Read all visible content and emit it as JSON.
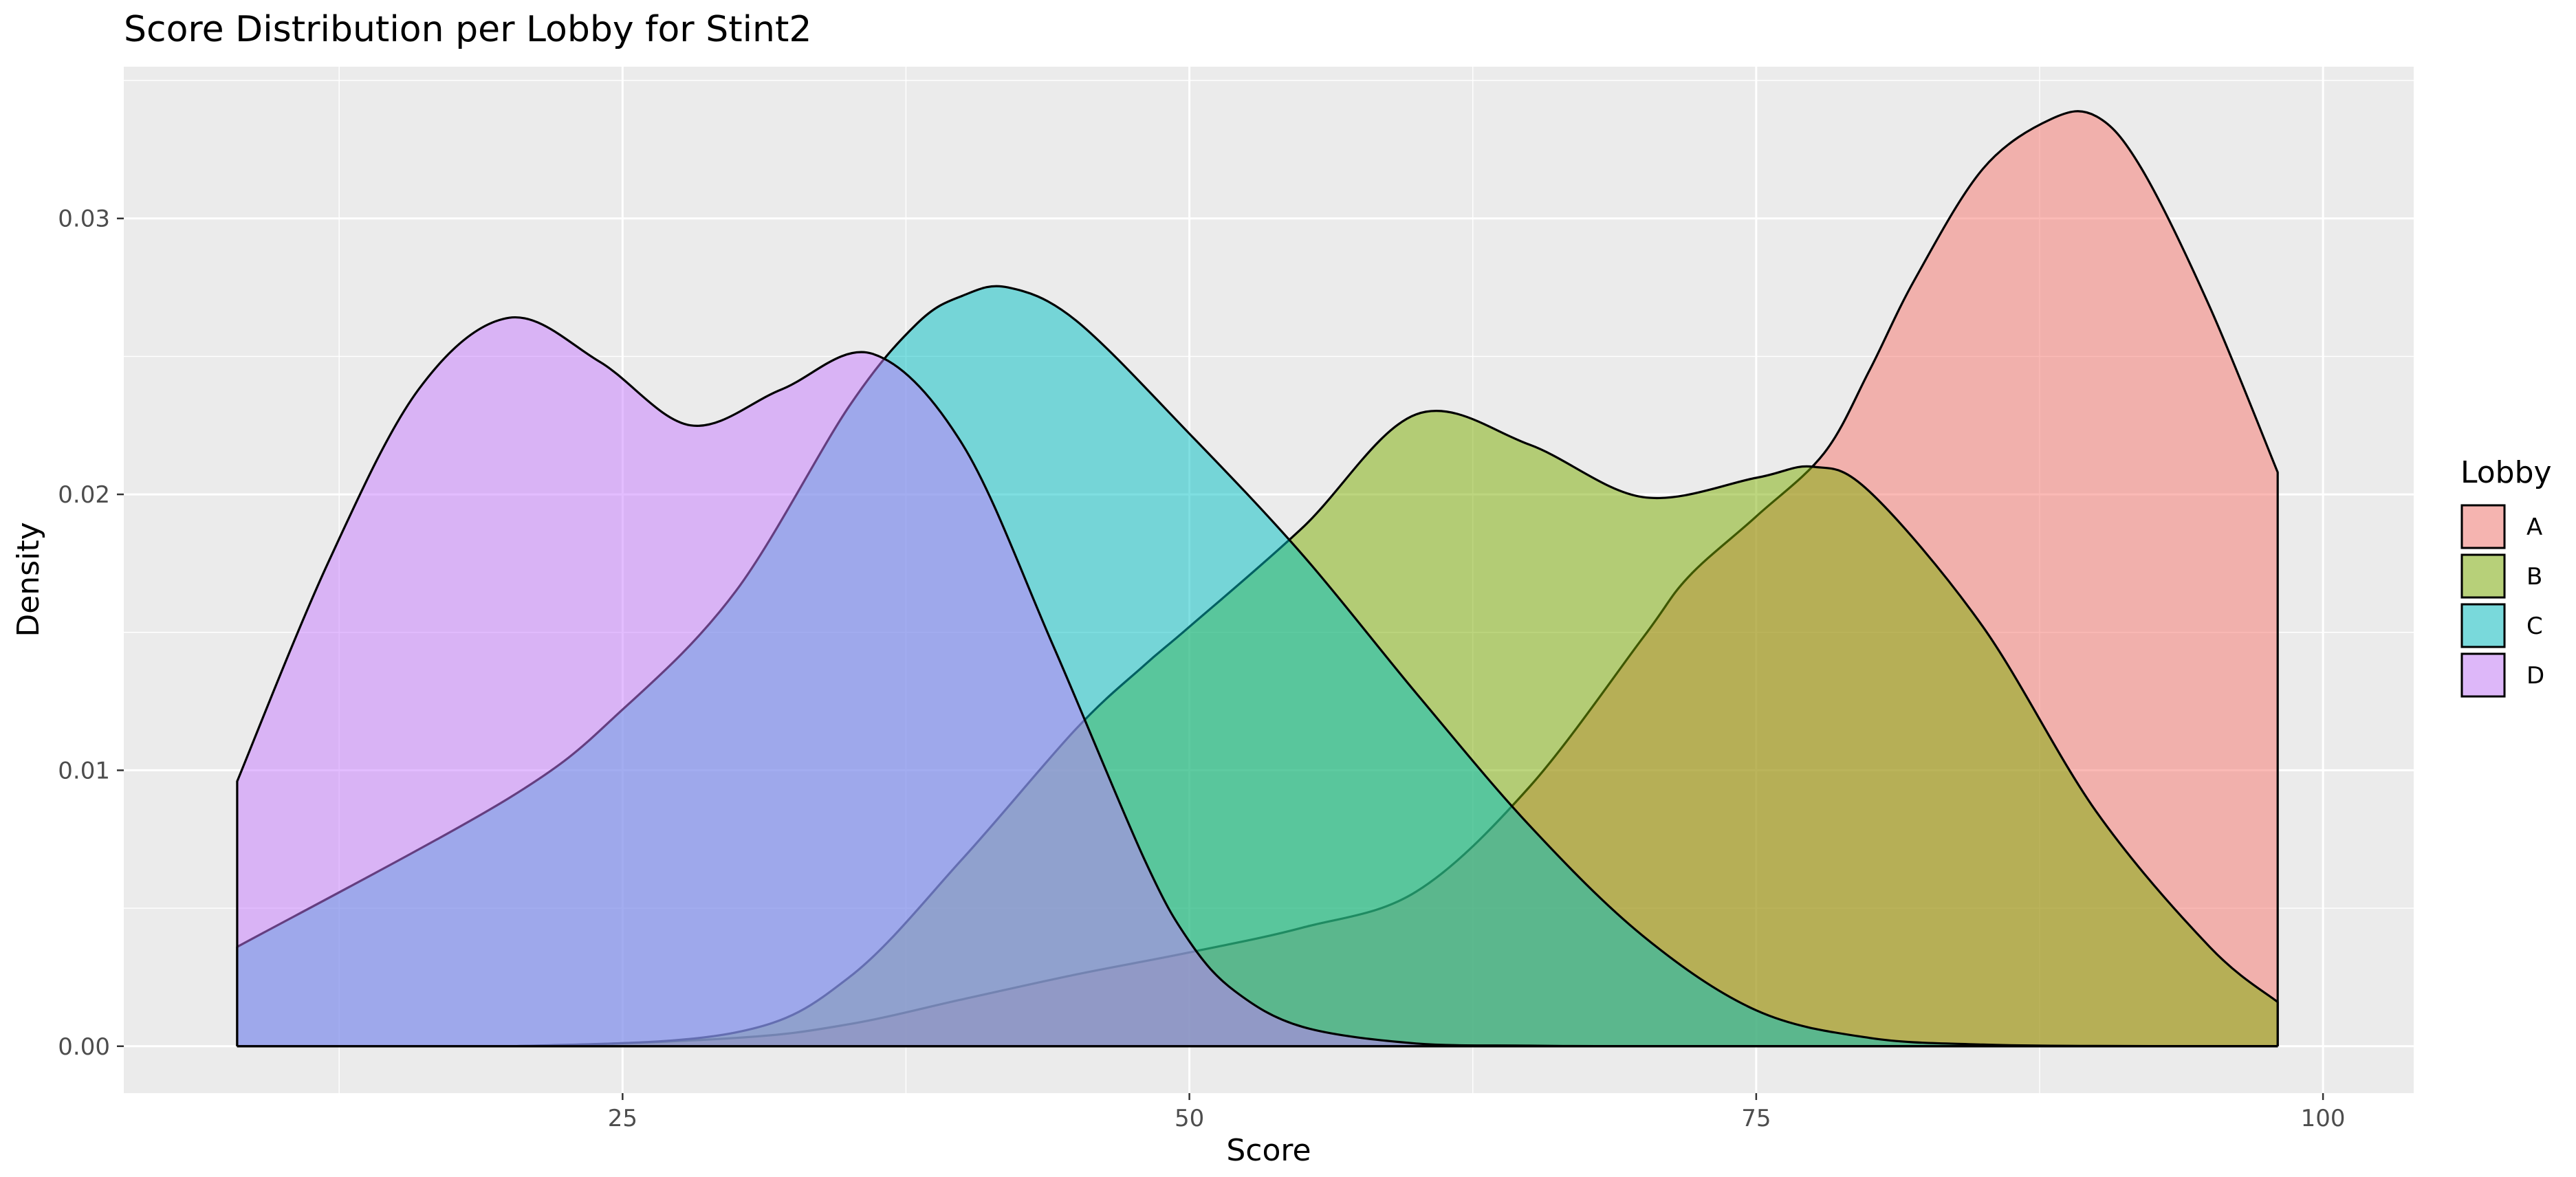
{
  "chart_data": {
    "type": "area",
    "subtype": "density",
    "title": "Score Distribution per Lobby for Stint2",
    "xlabel": "Score",
    "ylabel": "Density",
    "xlim": [
      3,
      104
    ],
    "ylim": [
      -0.0017,
      0.0355
    ],
    "x_ticks": [
      25,
      50,
      75,
      100
    ],
    "x_tick_labels": [
      "25",
      "50",
      "75",
      "100"
    ],
    "y_ticks": [
      0,
      0.01,
      0.02,
      0.03
    ],
    "y_tick_labels": [
      "0.00",
      "0.01",
      "0.02",
      "0.03"
    ],
    "grid": true,
    "legend": {
      "title": "Lobby",
      "position": "right"
    },
    "series": [
      {
        "name": "A",
        "color": "#F8766D",
        "x": [
          8,
          20,
          30,
          35,
          40,
          45,
          50,
          55,
          60,
          65,
          70,
          72,
          75,
          78,
          80,
          82,
          85,
          88,
          90,
          92,
          95,
          98
        ],
        "values": [
          0,
          0,
          0.0003,
          0.0008,
          0.0017,
          0.0026,
          0.0034,
          0.0043,
          0.0056,
          0.0094,
          0.0148,
          0.017,
          0.0192,
          0.0215,
          0.0245,
          0.0278,
          0.0318,
          0.0336,
          0.0337,
          0.0318,
          0.0268,
          0.0208
        ]
      },
      {
        "name": "B",
        "color": "#7CAE00",
        "x": [
          8,
          20,
          30,
          35,
          40,
          45,
          48,
          50,
          55,
          60,
          65,
          70,
          75,
          77.5,
          80,
          85,
          90,
          95,
          98
        ],
        "values": [
          0,
          0,
          0.0005,
          0.0025,
          0.0068,
          0.0115,
          0.0138,
          0.0152,
          0.0188,
          0.0229,
          0.0218,
          0.0199,
          0.0206,
          0.021,
          0.0201,
          0.0152,
          0.0085,
          0.0036,
          0.0016
        ]
      },
      {
        "name": "C",
        "color": "#00BFC4",
        "x": [
          8,
          20,
          25,
          30,
          35,
          38,
          40,
          42,
          45,
          50,
          55,
          60,
          65,
          70,
          75,
          80,
          85,
          90,
          98
        ],
        "values": [
          0.0036,
          0.009,
          0.0122,
          0.0165,
          0.0232,
          0.0262,
          0.0272,
          0.0275,
          0.0263,
          0.0222,
          0.0178,
          0.0128,
          0.008,
          0.004,
          0.0013,
          0.0003,
          6e-05,
          1e-05,
          0
        ]
      },
      {
        "name": "D",
        "color": "#C77CFF",
        "x": [
          8,
          12,
          16,
          20,
          24,
          28,
          32,
          36,
          40,
          44,
          48,
          50,
          52,
          55,
          60,
          65,
          70,
          80,
          98
        ],
        "values": [
          0.0096,
          0.0175,
          0.0238,
          0.0264,
          0.0248,
          0.0225,
          0.0238,
          0.0251,
          0.0218,
          0.0145,
          0.0068,
          0.0038,
          0.002,
          0.0007,
          0.0001,
          2e-05,
          0,
          0,
          0
        ]
      }
    ]
  }
}
